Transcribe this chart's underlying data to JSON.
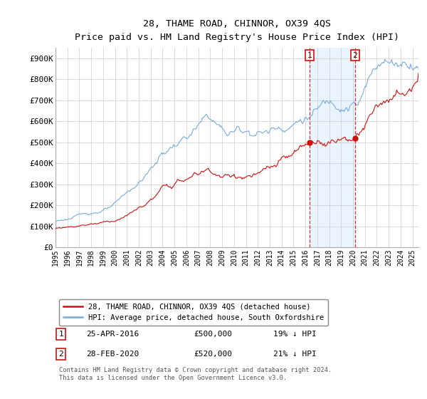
{
  "title": "28, THAME ROAD, CHINNOR, OX39 4QS",
  "subtitle": "Price paid vs. HM Land Registry's House Price Index (HPI)",
  "ylabel_ticks": [
    "£0",
    "£100K",
    "£200K",
    "£300K",
    "£400K",
    "£500K",
    "£600K",
    "£700K",
    "£800K",
    "£900K"
  ],
  "ytick_values": [
    0,
    100000,
    200000,
    300000,
    400000,
    500000,
    600000,
    700000,
    800000,
    900000
  ],
  "ylim": [
    0,
    950000
  ],
  "xlim_start": 1995.0,
  "xlim_end": 2025.5,
  "hpi_color": "#7aabdb",
  "price_color": "#cc1111",
  "marker1_year": 2016.33,
  "marker1_price": 500000,
  "marker2_year": 2020.17,
  "marker2_price": 520000,
  "legend_entry1": "28, THAME ROAD, CHINNOR, OX39 4QS (detached house)",
  "legend_entry2": "HPI: Average price, detached house, South Oxfordshire",
  "table_row1_num": "1",
  "table_row1_date": "25-APR-2016",
  "table_row1_price": "£500,000",
  "table_row1_hpi": "19% ↓ HPI",
  "table_row2_num": "2",
  "table_row2_date": "28-FEB-2020",
  "table_row2_price": "£520,000",
  "table_row2_hpi": "21% ↓ HPI",
  "footnote": "Contains HM Land Registry data © Crown copyright and database right 2024.\nThis data is licensed under the Open Government Licence v3.0.",
  "background_color": "#ffffff",
  "grid_color": "#cccccc",
  "shade_color": "#ddeeff"
}
